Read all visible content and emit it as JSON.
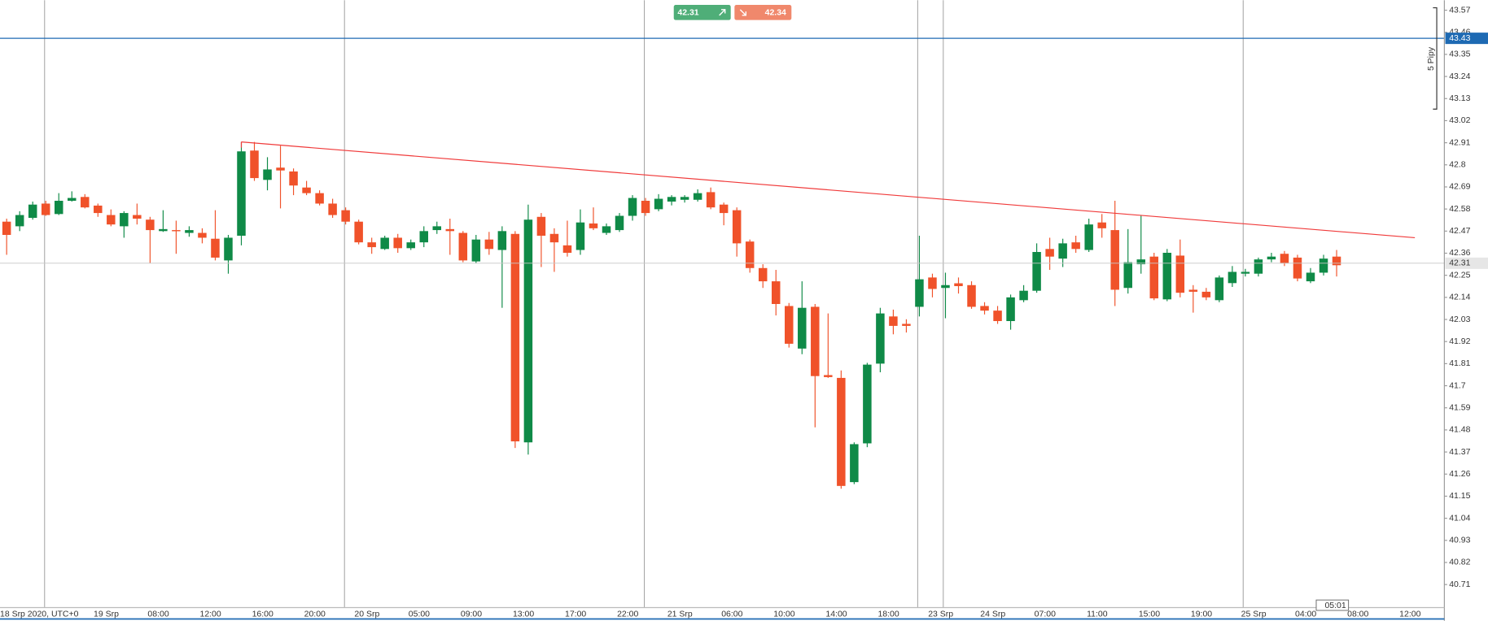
{
  "chart_data": {
    "type": "candlestick",
    "up_color": "#0f8a47",
    "down_color": "#f0522a",
    "ylim": [
      40.6,
      43.62
    ],
    "yticks": [
      43.57,
      43.46,
      43.35,
      43.24,
      43.13,
      43.02,
      42.91,
      42.8,
      42.69,
      42.58,
      42.47,
      42.36,
      42.25,
      42.14,
      42.03,
      41.92,
      41.81,
      41.7,
      41.59,
      41.48,
      41.37,
      41.26,
      41.15,
      41.04,
      40.93,
      40.82,
      40.71
    ],
    "bid": 42.31,
    "ask": 42.34,
    "horizontal_line": 43.43,
    "last_price": 42.31,
    "trend_line": {
      "start": 42.914,
      "end": 42.437
    },
    "scale_label": "5 Pipy",
    "countdown": "05:01",
    "categories": [
      "18 Srp 2020, UTC+0",
      null,
      null,
      null,
      null,
      null,
      null,
      null,
      "19 Srp",
      null,
      null,
      null,
      "08:00",
      null,
      null,
      null,
      "12:00",
      null,
      null,
      null,
      "16:00",
      null,
      null,
      null,
      "20:00",
      null,
      null,
      null,
      "20 Srp",
      null,
      null,
      null,
      "05:00",
      null,
      null,
      null,
      "09:00",
      null,
      null,
      null,
      "13:00",
      null,
      null,
      null,
      "17:00",
      null,
      null,
      null,
      "22:00",
      null,
      null,
      null,
      "21 Srp",
      null,
      null,
      null,
      "06:00",
      null,
      null,
      null,
      "10:00",
      null,
      null,
      null,
      "14:00",
      null,
      null,
      null,
      "18:00",
      null,
      null,
      null,
      "23 Srp",
      null,
      null,
      null,
      "24 Srp",
      null,
      null,
      null,
      "07:00",
      null,
      null,
      null,
      "11:00",
      null,
      null,
      null,
      "15:00",
      null,
      null,
      null,
      "19:00",
      null,
      null,
      null,
      "25 Srp",
      null,
      null,
      null,
      "04:00",
      null,
      null,
      null,
      "08:00",
      null,
      null,
      null,
      "12:00"
    ],
    "candles": [
      {
        "open": 42.517,
        "high": 42.532,
        "low": 42.352,
        "close": 42.451
      },
      {
        "open": 42.494,
        "high": 42.569,
        "low": 42.47,
        "close": 42.55
      },
      {
        "open": 42.536,
        "high": 42.617,
        "low": 42.527,
        "close": 42.602
      },
      {
        "open": 42.607,
        "high": 42.621,
        "low": 42.546,
        "close": 42.55
      },
      {
        "open": 42.555,
        "high": 42.659,
        "low": 42.55,
        "close": 42.621
      },
      {
        "open": 42.621,
        "high": 42.668,
        "low": 42.617,
        "close": 42.635
      },
      {
        "open": 42.64,
        "high": 42.654,
        "low": 42.583,
        "close": 42.588
      },
      {
        "open": 42.597,
        "high": 42.607,
        "low": 42.541,
        "close": 42.56
      },
      {
        "open": 42.55,
        "high": 42.578,
        "low": 42.494,
        "close": 42.503
      },
      {
        "open": 42.494,
        "high": 42.569,
        "low": 42.437,
        "close": 42.56
      },
      {
        "open": 42.55,
        "high": 42.607,
        "low": 42.503,
        "close": 42.532
      },
      {
        "open": 42.527,
        "high": 42.541,
        "low": 42.31,
        "close": 42.475
      },
      {
        "open": 42.47,
        "high": 42.574,
        "low": 42.466,
        "close": 42.48
      },
      {
        "open": 42.475,
        "high": 42.522,
        "low": 42.357,
        "close": 42.47
      },
      {
        "open": 42.461,
        "high": 42.494,
        "low": 42.442,
        "close": 42.475
      },
      {
        "open": 42.461,
        "high": 42.484,
        "low": 42.409,
        "close": 42.437
      },
      {
        "open": 42.432,
        "high": 42.574,
        "low": 42.324,
        "close": 42.338
      },
      {
        "open": 42.324,
        "high": 42.451,
        "low": 42.258,
        "close": 42.437
      },
      {
        "open": 42.447,
        "high": 42.914,
        "low": 42.399,
        "close": 42.867
      },
      {
        "open": 42.871,
        "high": 42.914,
        "low": 42.72,
        "close": 42.734
      },
      {
        "open": 42.725,
        "high": 42.838,
        "low": 42.673,
        "close": 42.777
      },
      {
        "open": 42.786,
        "high": 42.895,
        "low": 42.583,
        "close": 42.772
      },
      {
        "open": 42.767,
        "high": 42.782,
        "low": 42.649,
        "close": 42.697
      },
      {
        "open": 42.687,
        "high": 42.72,
        "low": 42.649,
        "close": 42.659
      },
      {
        "open": 42.659,
        "high": 42.673,
        "low": 42.598,
        "close": 42.607
      },
      {
        "open": 42.607,
        "high": 42.631,
        "low": 42.536,
        "close": 42.55
      },
      {
        "open": 42.574,
        "high": 42.588,
        "low": 42.503,
        "close": 42.517
      },
      {
        "open": 42.517,
        "high": 42.527,
        "low": 42.404,
        "close": 42.414
      },
      {
        "open": 42.414,
        "high": 42.437,
        "low": 42.357,
        "close": 42.39
      },
      {
        "open": 42.381,
        "high": 42.447,
        "low": 42.376,
        "close": 42.437
      },
      {
        "open": 42.437,
        "high": 42.456,
        "low": 42.362,
        "close": 42.385
      },
      {
        "open": 42.385,
        "high": 42.428,
        "low": 42.376,
        "close": 42.414
      },
      {
        "open": 42.414,
        "high": 42.494,
        "low": 42.39,
        "close": 42.47
      },
      {
        "open": 42.475,
        "high": 42.517,
        "low": 42.456,
        "close": 42.494
      },
      {
        "open": 42.48,
        "high": 42.532,
        "low": 42.352,
        "close": 42.47
      },
      {
        "open": 42.461,
        "high": 42.47,
        "low": 42.315,
        "close": 42.324
      },
      {
        "open": 42.319,
        "high": 42.451,
        "low": 42.31,
        "close": 42.428
      },
      {
        "open": 42.428,
        "high": 42.466,
        "low": 42.352,
        "close": 42.381
      },
      {
        "open": 42.376,
        "high": 42.494,
        "low": 42.088,
        "close": 42.47
      },
      {
        "open": 42.456,
        "high": 42.47,
        "low": 41.39,
        "close": 41.423
      },
      {
        "open": 41.418,
        "high": 42.602,
        "low": 41.357,
        "close": 42.527
      },
      {
        "open": 42.541,
        "high": 42.56,
        "low": 42.291,
        "close": 42.447
      },
      {
        "open": 42.456,
        "high": 42.484,
        "low": 42.267,
        "close": 42.414
      },
      {
        "open": 42.399,
        "high": 42.522,
        "low": 42.343,
        "close": 42.362
      },
      {
        "open": 42.376,
        "high": 42.578,
        "low": 42.352,
        "close": 42.513
      },
      {
        "open": 42.508,
        "high": 42.588,
        "low": 42.475,
        "close": 42.484
      },
      {
        "open": 42.461,
        "high": 42.508,
        "low": 42.451,
        "close": 42.494
      },
      {
        "open": 42.475,
        "high": 42.56,
        "low": 42.466,
        "close": 42.546
      },
      {
        "open": 42.546,
        "high": 42.649,
        "low": 42.522,
        "close": 42.635
      },
      {
        "open": 42.621,
        "high": 42.635,
        "low": 42.546,
        "close": 42.56
      },
      {
        "open": 42.579,
        "high": 42.654,
        "low": 42.569,
        "close": 42.631
      },
      {
        "open": 42.617,
        "high": 42.649,
        "low": 42.598,
        "close": 42.64
      },
      {
        "open": 42.626,
        "high": 42.649,
        "low": 42.612,
        "close": 42.64
      },
      {
        "open": 42.626,
        "high": 42.678,
        "low": 42.617,
        "close": 42.659
      },
      {
        "open": 42.664,
        "high": 42.687,
        "low": 42.579,
        "close": 42.588
      },
      {
        "open": 42.602,
        "high": 42.612,
        "low": 42.499,
        "close": 42.56
      },
      {
        "open": 42.574,
        "high": 42.588,
        "low": 42.343,
        "close": 42.409
      },
      {
        "open": 42.418,
        "high": 42.428,
        "low": 42.263,
        "close": 42.286
      },
      {
        "open": 42.286,
        "high": 42.305,
        "low": 42.187,
        "close": 42.22
      },
      {
        "open": 42.22,
        "high": 42.277,
        "low": 42.05,
        "close": 42.107
      },
      {
        "open": 42.097,
        "high": 42.112,
        "low": 41.89,
        "close": 41.909
      },
      {
        "open": 41.885,
        "high": 42.22,
        "low": 41.857,
        "close": 42.088
      },
      {
        "open": 42.093,
        "high": 42.107,
        "low": 41.493,
        "close": 41.748
      },
      {
        "open": 41.753,
        "high": 42.06,
        "low": 41.739,
        "close": 41.743
      },
      {
        "open": 41.739,
        "high": 41.776,
        "low": 41.187,
        "close": 41.201
      },
      {
        "open": 41.22,
        "high": 41.418,
        "low": 41.21,
        "close": 41.409
      },
      {
        "open": 41.413,
        "high": 41.814,
        "low": 41.394,
        "close": 41.805
      },
      {
        "open": 41.81,
        "high": 42.088,
        "low": 41.767,
        "close": 42.06
      },
      {
        "open": 42.045,
        "high": 42.079,
        "low": 41.956,
        "close": 41.998
      },
      {
        "open": 42.008,
        "high": 42.031,
        "low": 41.965,
        "close": 41.998
      },
      {
        "open": 42.093,
        "high": 42.447,
        "low": 42.045,
        "close": 42.23
      },
      {
        "open": 42.239,
        "high": 42.258,
        "low": 42.14,
        "close": 42.182
      },
      {
        "open": 42.187,
        "high": 42.263,
        "low": 42.036,
        "close": 42.201
      },
      {
        "open": 42.21,
        "high": 42.239,
        "low": 42.159,
        "close": 42.196
      },
      {
        "open": 42.201,
        "high": 42.22,
        "low": 42.083,
        "close": 42.093
      },
      {
        "open": 42.097,
        "high": 42.116,
        "low": 42.055,
        "close": 42.074
      },
      {
        "open": 42.074,
        "high": 42.097,
        "low": 42.008,
        "close": 42.022
      },
      {
        "open": 42.022,
        "high": 42.154,
        "low": 41.979,
        "close": 42.14
      },
      {
        "open": 42.126,
        "high": 42.201,
        "low": 42.116,
        "close": 42.173
      },
      {
        "open": 42.173,
        "high": 42.409,
        "low": 42.163,
        "close": 42.366
      },
      {
        "open": 42.381,
        "high": 42.437,
        "low": 42.277,
        "close": 42.343
      },
      {
        "open": 42.333,
        "high": 42.432,
        "low": 42.291,
        "close": 42.409
      },
      {
        "open": 42.414,
        "high": 42.447,
        "low": 42.362,
        "close": 42.381
      },
      {
        "open": 42.376,
        "high": 42.532,
        "low": 42.366,
        "close": 42.503
      },
      {
        "open": 42.513,
        "high": 42.555,
        "low": 42.437,
        "close": 42.484
      },
      {
        "open": 42.475,
        "high": 42.621,
        "low": 42.097,
        "close": 42.178
      },
      {
        "open": 42.187,
        "high": 42.48,
        "low": 42.159,
        "close": 42.315
      },
      {
        "open": 42.305,
        "high": 42.546,
        "low": 42.258,
        "close": 42.329
      },
      {
        "open": 42.343,
        "high": 42.362,
        "low": 42.126,
        "close": 42.135
      },
      {
        "open": 42.13,
        "high": 42.381,
        "low": 42.121,
        "close": 42.362
      },
      {
        "open": 42.348,
        "high": 42.428,
        "low": 42.14,
        "close": 42.163
      },
      {
        "open": 42.178,
        "high": 42.201,
        "low": 42.064,
        "close": 42.168
      },
      {
        "open": 42.168,
        "high": 42.187,
        "low": 42.126,
        "close": 42.14
      },
      {
        "open": 42.126,
        "high": 42.249,
        "low": 42.116,
        "close": 42.239
      },
      {
        "open": 42.211,
        "high": 42.296,
        "low": 42.192,
        "close": 42.267
      },
      {
        "open": 42.258,
        "high": 42.282,
        "low": 42.244,
        "close": 42.267
      },
      {
        "open": 42.258,
        "high": 42.338,
        "low": 42.244,
        "close": 42.329
      },
      {
        "open": 42.329,
        "high": 42.362,
        "low": 42.315,
        "close": 42.343
      },
      {
        "open": 42.357,
        "high": 42.371,
        "low": 42.296,
        "close": 42.31
      },
      {
        "open": 42.338,
        "high": 42.352,
        "low": 42.22,
        "close": 42.234
      },
      {
        "open": 42.22,
        "high": 42.286,
        "low": 42.211,
        "close": 42.263
      },
      {
        "open": 42.263,
        "high": 42.352,
        "low": 42.249,
        "close": 42.333
      },
      {
        "open": 42.343,
        "high": 42.376,
        "low": 42.244,
        "close": 42.3
      },
      null,
      null,
      null,
      null,
      null,
      null
    ]
  }
}
